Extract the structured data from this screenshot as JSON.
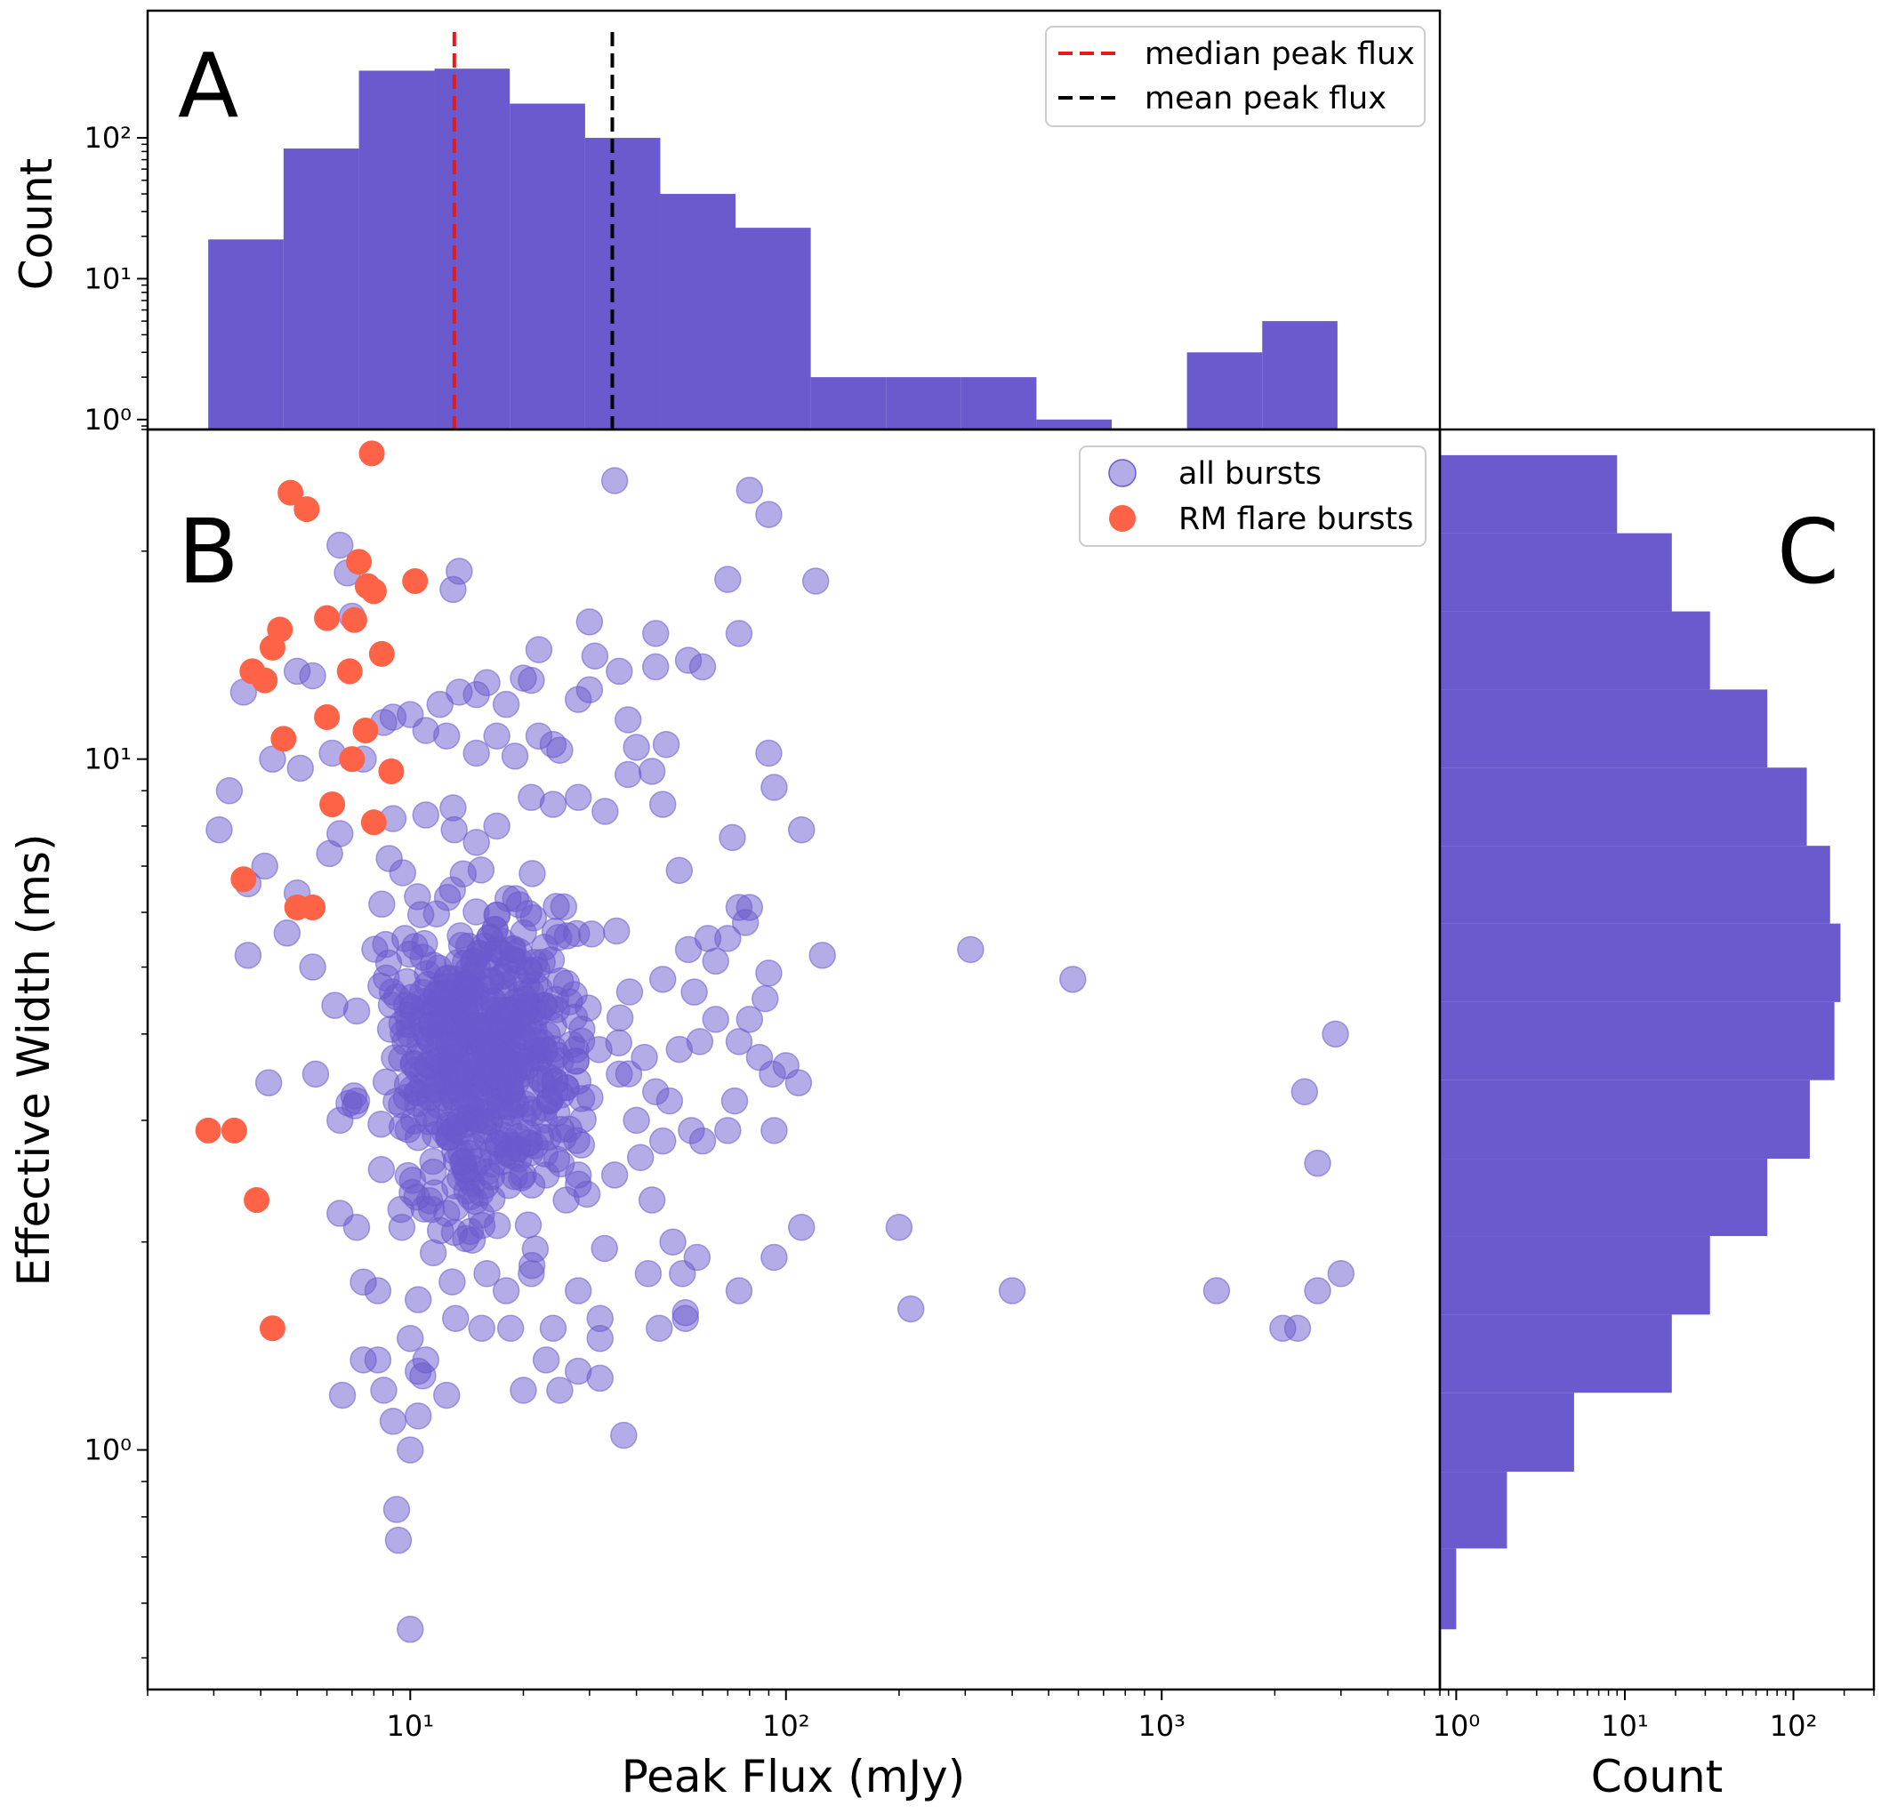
{
  "colors": {
    "hist": "#6a5acd",
    "scatter": "#6a5acd",
    "flare": "#ff6347",
    "median": "#e41a1c",
    "mean": "#000000"
  },
  "chart_data": [
    {
      "panel": "A",
      "type": "bar",
      "xscale": "log",
      "yscale": "log",
      "xlabel": "",
      "ylabel": "Count",
      "xlim": [
        2.0,
        5500
      ],
      "ylim": [
        0.85,
        800
      ],
      "ytick_labels": [
        "10⁰",
        "10¹",
        "10²"
      ],
      "bins": [
        {
          "left": 2.9,
          "right": 4.6,
          "count": 19
        },
        {
          "left": 4.6,
          "right": 7.3,
          "count": 84
        },
        {
          "left": 7.3,
          "right": 11.6,
          "count": 300
        },
        {
          "left": 11.6,
          "right": 18.4,
          "count": 310
        },
        {
          "left": 18.4,
          "right": 29.2,
          "count": 175
        },
        {
          "left": 29.2,
          "right": 46.3,
          "count": 100
        },
        {
          "left": 46.3,
          "right": 73.4,
          "count": 40
        },
        {
          "left": 73.4,
          "right": 116.4,
          "count": 23
        },
        {
          "left": 116.4,
          "right": 184.6,
          "count": 2
        },
        {
          "left": 184.6,
          "right": 292.7,
          "count": 2
        },
        {
          "left": 292.7,
          "right": 464.2,
          "count": 2
        },
        {
          "left": 464.2,
          "right": 736.2,
          "count": 1
        },
        {
          "left": 1167.6,
          "right": 1851.6,
          "count": 3
        },
        {
          "left": 1851.6,
          "right": 2936.4,
          "count": 5
        }
      ],
      "vlines": [
        {
          "name": "median peak flux",
          "x": 13.1,
          "color": "#e41a1c"
        },
        {
          "name": "mean peak flux",
          "x": 34.5,
          "color": "#000000"
        }
      ],
      "legend": [
        "median peak flux",
        "mean peak flux"
      ],
      "legend_position": "top-right"
    },
    {
      "panel": "B",
      "type": "scatter",
      "xscale": "log",
      "yscale": "log",
      "xlabel": "Peak Flux (mJy)",
      "ylabel": "Effective Width (ms)",
      "xlim": [
        2.0,
        5500
      ],
      "ylim": [
        0.45,
        30
      ],
      "xtick_labels": [
        "10¹",
        "10²",
        "10³"
      ],
      "ytick_labels": [
        "10⁰",
        "10¹"
      ],
      "series": [
        {
          "name": "all bursts",
          "color": "#6a5acd",
          "alpha": 0.5,
          "points": [
            [
              35,
              25.3
            ],
            [
              80,
              24.5
            ],
            [
              90,
              22.6
            ],
            [
              6.5,
              20.4
            ],
            [
              6.8,
              18.6
            ],
            [
              13.5,
              18.7
            ],
            [
              13,
              17.6
            ],
            [
              70,
              18.2
            ],
            [
              120,
              18.1
            ],
            [
              7,
              16.1
            ],
            [
              30,
              15.8
            ],
            [
              22,
              14.4
            ],
            [
              45,
              15.2
            ],
            [
              75,
              15.2
            ],
            [
              31,
              14.1
            ],
            [
              55,
              13.9
            ],
            [
              60,
              13.6
            ],
            [
              45,
              13.6
            ],
            [
              36,
              13.4
            ],
            [
              20,
              13.1
            ],
            [
              16,
              12.9
            ],
            [
              21,
              13.0
            ],
            [
              12,
              12.0
            ],
            [
              13.5,
              12.5
            ],
            [
              5.5,
              13.2
            ],
            [
              5,
              13.4
            ],
            [
              3.6,
              12.5
            ],
            [
              30,
              12.6
            ],
            [
              28,
              12.2
            ],
            [
              10,
              11.6
            ],
            [
              15,
              12.4
            ],
            [
              18,
              12.0
            ],
            [
              8.5,
              11.3
            ],
            [
              9,
              11.5
            ],
            [
              38,
              11.4
            ],
            [
              11,
              11.0
            ],
            [
              12.5,
              10.8
            ],
            [
              17,
              10.8
            ],
            [
              22,
              10.8
            ],
            [
              24,
              10.5
            ],
            [
              40,
              10.4
            ],
            [
              48,
              10.5
            ],
            [
              15,
              10.2
            ],
            [
              19,
              10.1
            ],
            [
              25,
              10.3
            ],
            [
              4.3,
              10.0
            ],
            [
              5.1,
              9.7
            ],
            [
              3.3,
              9.0
            ],
            [
              6.2,
              10.2
            ],
            [
              7.5,
              10.0
            ],
            [
              3.1,
              7.9
            ],
            [
              4.1,
              7.0
            ],
            [
              3.7,
              6.6
            ],
            [
              5.0,
              6.4
            ],
            [
              6.1,
              7.3
            ],
            [
              6.5,
              7.8
            ],
            [
              9,
              8.2
            ],
            [
              11,
              8.3
            ],
            [
              13,
              8.5
            ],
            [
              17,
              8.0
            ],
            [
              21,
              8.8
            ],
            [
              24,
              8.6
            ],
            [
              28,
              8.8
            ],
            [
              33,
              8.4
            ],
            [
              38,
              9.5
            ],
            [
              44,
              9.6
            ],
            [
              47,
              8.6
            ],
            [
              90,
              10.2
            ],
            [
              93,
              9.1
            ],
            [
              110,
              7.9
            ],
            [
              72,
              7.7
            ],
            [
              52,
              6.9
            ],
            [
              75,
              6.1
            ],
            [
              80,
              6.1
            ],
            [
              62,
              5.5
            ],
            [
              125,
              5.2
            ],
            [
              3.7,
              5.2
            ],
            [
              4.7,
              5.6
            ],
            [
              5.5,
              5.0
            ],
            [
              6.3,
              4.4
            ],
            [
              75,
              3.9
            ],
            [
              85,
              3.7
            ],
            [
              92,
              3.5
            ],
            [
              100,
              3.6
            ],
            [
              108,
              3.4
            ],
            [
              4.2,
              3.4
            ],
            [
              5.6,
              3.5
            ],
            [
              6.5,
              3.0
            ],
            [
              7.2,
              3.2
            ],
            [
              73,
              3.2
            ],
            [
              93,
              2.9
            ],
            [
              60,
              2.8
            ],
            [
              70,
              2.9
            ],
            [
              310,
              5.3
            ],
            [
              580,
              4.8
            ],
            [
              2900,
              4.0
            ],
            [
              2400,
              3.3
            ],
            [
              2600,
              2.6
            ],
            [
              6.5,
              2.2
            ],
            [
              7.2,
              2.1
            ],
            [
              9.5,
              2.1
            ],
            [
              12.5,
              2.2
            ],
            [
              16,
              1.8
            ],
            [
              18,
              1.7
            ],
            [
              21,
              1.8
            ],
            [
              28,
              1.7
            ],
            [
              43,
              1.8
            ],
            [
              46,
              1.5
            ],
            [
              53,
              1.8
            ],
            [
              58,
              1.9
            ],
            [
              75,
              1.7
            ],
            [
              93,
              1.9
            ],
            [
              110,
              2.1
            ],
            [
              200,
              2.1
            ],
            [
              215,
              1.6
            ],
            [
              400,
              1.7
            ],
            [
              1400,
              1.7
            ],
            [
              2100,
              1.5
            ],
            [
              2300,
              1.5
            ],
            [
              2600,
              1.7
            ],
            [
              3000,
              1.8
            ],
            [
              7.5,
              1.75
            ],
            [
              8.2,
              1.7
            ],
            [
              10.5,
              1.65
            ],
            [
              13.2,
              1.55
            ],
            [
              15.5,
              1.5
            ],
            [
              18.5,
              1.5
            ],
            [
              10,
              1.45
            ],
            [
              11,
              1.35
            ],
            [
              24,
              1.5
            ],
            [
              23,
              1.35
            ],
            [
              32,
              1.55
            ],
            [
              32,
              1.45
            ],
            [
              28,
              1.3
            ],
            [
              7.5,
              1.35
            ],
            [
              8.2,
              1.35
            ],
            [
              6.6,
              1.2
            ],
            [
              8.5,
              1.22
            ],
            [
              10.8,
              1.28
            ],
            [
              12.5,
              1.2
            ],
            [
              20,
              1.22
            ],
            [
              25,
              1.22
            ],
            [
              32,
              1.27
            ],
            [
              9,
              1.1
            ],
            [
              10.5,
              1.12
            ],
            [
              37,
              1.05
            ],
            [
              10,
              1.0
            ],
            [
              9.2,
              0.82
            ],
            [
              9.3,
              0.74
            ],
            [
              10,
              0.55
            ],
            [
              54,
              1.55
            ],
            [
              54,
              1.58
            ],
            [
              10.5,
              1.3
            ],
            [
              44,
              2.3
            ],
            [
              50,
              2.0
            ],
            [
              26,
              2.3
            ],
            [
              23,
              2.5
            ],
            [
              20,
              2.5
            ],
            [
              28,
              2.5
            ],
            [
              35,
              2.5
            ],
            [
              41,
              2.65
            ],
            [
              47,
              2.8
            ],
            [
              56,
              2.9
            ],
            [
              40,
              3.0
            ],
            [
              45,
              3.3
            ],
            [
              49,
              3.2
            ],
            [
              36,
              3.5
            ],
            [
              42,
              3.7
            ],
            [
              52,
              3.8
            ],
            [
              59,
              3.9
            ],
            [
              65,
              4.2
            ],
            [
              80,
              4.2
            ],
            [
              88,
              4.5
            ],
            [
              57,
              4.6
            ],
            [
              47,
              4.8
            ],
            [
              90,
              4.9
            ],
            [
              65,
              5.1
            ],
            [
              55,
              5.3
            ],
            [
              70,
              5.5
            ],
            [
              78,
              5.8
            ]
          ]
        },
        {
          "name": "RM flare bursts",
          "color": "#ff6347",
          "alpha": 1.0,
          "points": [
            [
              7.9,
              27.7
            ],
            [
              4.8,
              24.3
            ],
            [
              5.3,
              23.0
            ],
            [
              7.3,
              19.3
            ],
            [
              10.3,
              18.1
            ],
            [
              7.7,
              17.8
            ],
            [
              8.0,
              17.5
            ],
            [
              6.0,
              16.0
            ],
            [
              7.1,
              15.9
            ],
            [
              4.5,
              15.4
            ],
            [
              4.3,
              14.5
            ],
            [
              8.4,
              14.2
            ],
            [
              3.8,
              13.4
            ],
            [
              4.1,
              13.0
            ],
            [
              6.9,
              13.4
            ],
            [
              6.0,
              11.5
            ],
            [
              7.6,
              11.0
            ],
            [
              4.6,
              10.7
            ],
            [
              7.0,
              10.0
            ],
            [
              8.9,
              9.6
            ],
            [
              6.2,
              8.6
            ],
            [
              8.0,
              8.1
            ],
            [
              3.6,
              6.7
            ],
            [
              5.0,
              6.1
            ],
            [
              5.5,
              6.1
            ],
            [
              2.9,
              2.9
            ],
            [
              3.4,
              2.9
            ],
            [
              3.9,
              2.3
            ],
            [
              4.3,
              1.5
            ]
          ]
        }
      ],
      "legend": [
        "all bursts",
        "RM flare bursts"
      ],
      "legend_position": "top-right"
    },
    {
      "panel": "C",
      "type": "bar",
      "orientation": "horizontal",
      "xscale": "log",
      "yscale": "log",
      "xlabel": "Count",
      "ylabel": "",
      "xlim": [
        0.8,
        300
      ],
      "xtick_labels": [
        "10⁰",
        "10¹",
        "10²"
      ],
      "bins": [
        {
          "low": 0.55,
          "high": 0.72,
          "count": 1
        },
        {
          "low": 0.72,
          "high": 0.93,
          "count": 2
        },
        {
          "low": 0.93,
          "high": 1.21,
          "count": 5
        },
        {
          "low": 1.21,
          "high": 1.57,
          "count": 19
        },
        {
          "low": 1.57,
          "high": 2.04,
          "count": 32
        },
        {
          "low": 2.04,
          "high": 2.64,
          "count": 70
        },
        {
          "low": 2.64,
          "high": 3.43,
          "count": 125
        },
        {
          "low": 3.43,
          "high": 4.45,
          "count": 175
        },
        {
          "low": 4.45,
          "high": 5.78,
          "count": 190
        },
        {
          "low": 5.78,
          "high": 7.49,
          "count": 165
        },
        {
          "low": 7.49,
          "high": 9.72,
          "count": 120
        },
        {
          "low": 9.72,
          "high": 12.61,
          "count": 70
        },
        {
          "low": 12.61,
          "high": 16.36,
          "count": 32
        },
        {
          "low": 16.36,
          "high": 21.23,
          "count": 19
        },
        {
          "low": 21.23,
          "high": 27.54,
          "count": 9
        }
      ]
    }
  ],
  "panels": {
    "a": "A",
    "b": "B",
    "c": "C"
  },
  "axes": {
    "top_ylabel": "Count",
    "main_xlabel": "Peak Flux (mJy)",
    "main_ylabel": "Effective Width (ms)",
    "right_xlabel": "Count"
  },
  "legend_a": {
    "median": "median peak flux",
    "mean": "mean peak flux"
  },
  "legend_b": {
    "all": "all bursts",
    "flare": "RM flare bursts"
  }
}
